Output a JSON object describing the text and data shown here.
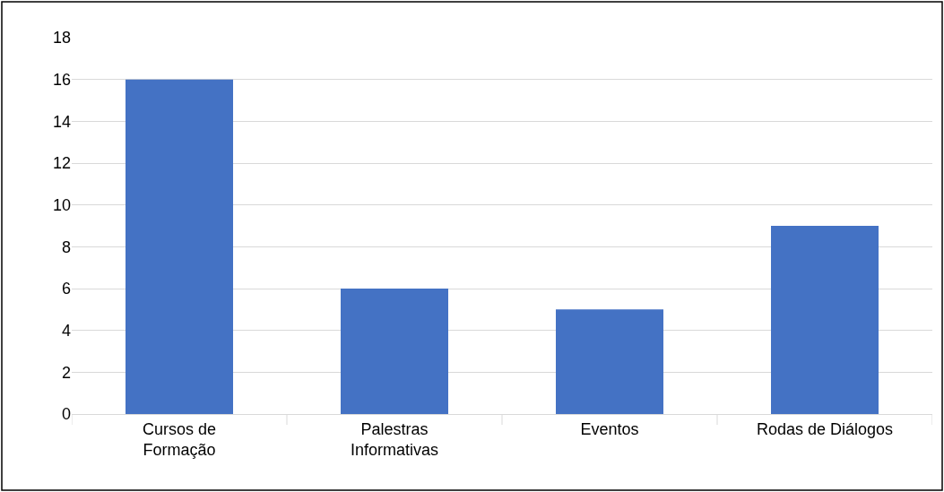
{
  "chart_data": {
    "type": "bar",
    "categories": [
      "Cursos de\nFormação",
      "Palestras\nInformativas",
      "Eventos",
      "Rodas de Diálogos"
    ],
    "values": [
      16,
      6,
      5,
      9
    ],
    "color": "#4472c4",
    "ylim": [
      0,
      18
    ],
    "yticks": [
      0,
      2,
      4,
      6,
      8,
      10,
      12,
      14,
      16,
      18
    ],
    "grid": "y"
  }
}
